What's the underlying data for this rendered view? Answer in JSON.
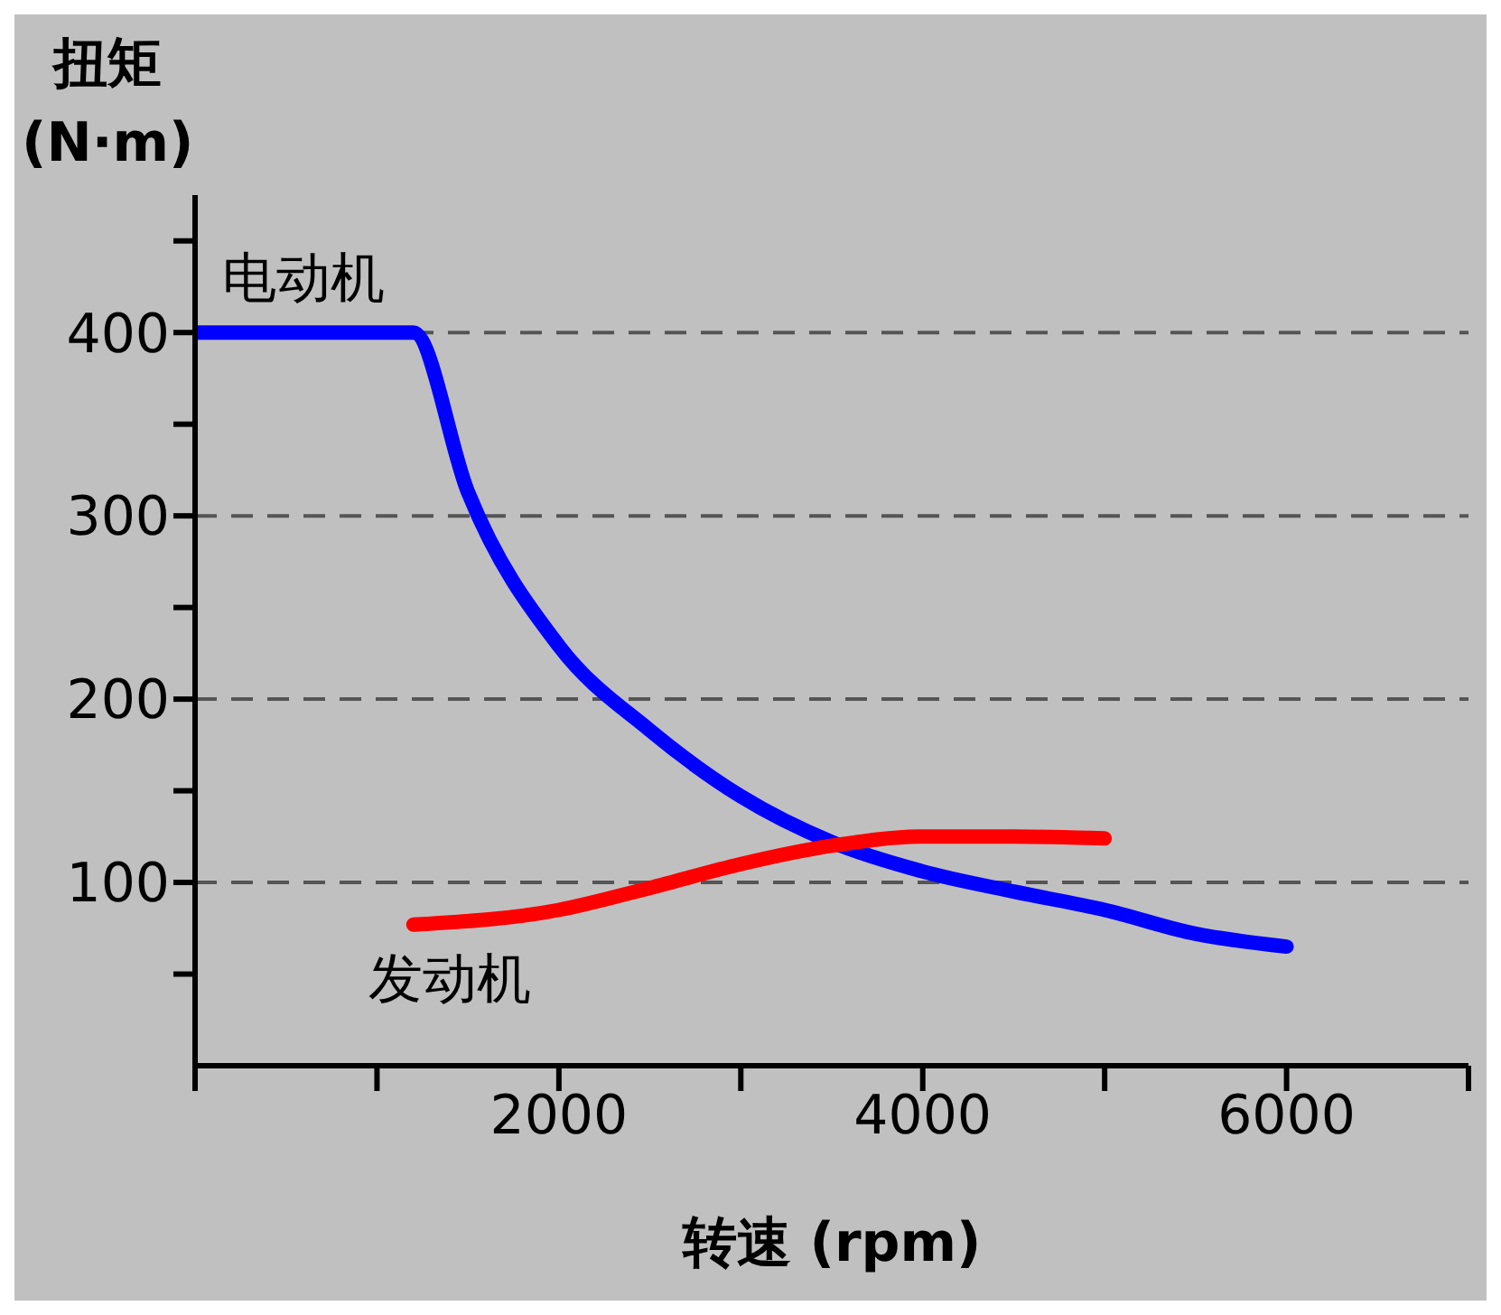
{
  "chart_data": {
    "type": "line",
    "xlabel": "转速 (rpm)",
    "ylabel": "扭矩\n(N·m)",
    "xlim": [
      0,
      7000
    ],
    "xticks": [
      {
        "value": 0,
        "label": null
      },
      {
        "value": 1000,
        "label": null
      },
      2000,
      {
        "value": 3000,
        "label": null
      },
      4000,
      {
        "value": 5000,
        "label": null
      },
      6000,
      {
        "value": 7000,
        "label": null
      }
    ],
    "ylim": [
      0,
      475
    ],
    "yticks": [
      {
        "value": 50,
        "label": null
      },
      100,
      {
        "value": 150,
        "label": null
      },
      200,
      {
        "value": 250,
        "label": null
      },
      300,
      {
        "value": 350,
        "label": null
      },
      400,
      {
        "value": 450,
        "label": null
      }
    ],
    "grid": "y",
    "legend": false,
    "marker": "none",
    "line_style": "solid",
    "series": [
      {
        "name": "电动机",
        "color": "#0000ff",
        "x": [
          0,
          1200,
          1500,
          2000,
          2500,
          3000,
          3500,
          4000,
          4500,
          5000,
          5500,
          6000
        ],
        "values": [
          400,
          400,
          313,
          229,
          183,
          147,
          122,
          106,
          95,
          85,
          72,
          65
        ]
      },
      {
        "name": "发动机",
        "color": "#ff0000",
        "x": [
          1200,
          2000,
          2500,
          3000,
          3500,
          4000,
          4500,
          5000
        ],
        "values": [
          77,
          85,
          97,
          110,
          120,
          125,
          125,
          124
        ]
      }
    ]
  }
}
